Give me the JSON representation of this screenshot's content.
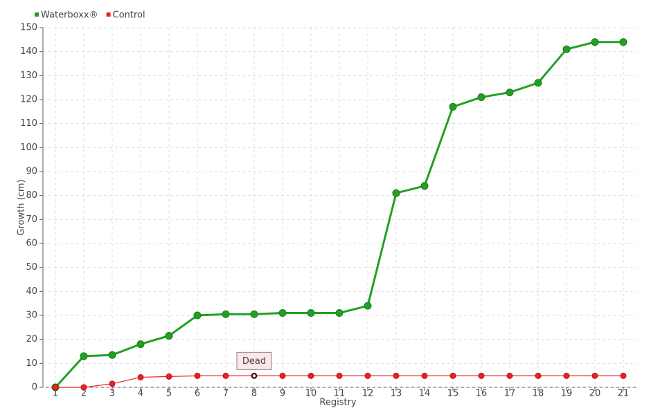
{
  "chart_data": {
    "type": "line",
    "xlabel": "Registry",
    "ylabel": "Growth (cm)",
    "categories": [
      "1",
      "2",
      "3",
      "4",
      "5",
      "6",
      "7",
      "8",
      "9",
      "10",
      "11",
      "12",
      "13",
      "14",
      "15",
      "16",
      "17",
      "18",
      "19",
      "20",
      "21"
    ],
    "series": [
      {
        "name": "Waterboxx®",
        "color": "#22a022",
        "values": [
          0,
          13,
          13.5,
          18,
          21.5,
          30,
          30.5,
          30.5,
          31,
          31,
          31,
          34,
          81,
          84,
          117,
          121,
          123,
          127,
          141,
          144,
          144
        ]
      },
      {
        "name": "Control",
        "color": "#e8202a",
        "values": [
          0,
          0,
          1.5,
          4.2,
          4.5,
          4.8,
          4.8,
          4.8,
          4.8,
          4.8,
          4.8,
          4.8,
          4.8,
          4.8,
          4.8,
          4.8,
          4.8,
          4.8,
          4.8,
          4.8,
          4.8
        ]
      }
    ],
    "annotations": [
      {
        "text": "Dead",
        "series": "Control",
        "category": "8"
      }
    ],
    "ylim": [
      0,
      150
    ],
    "yticks": [
      0,
      10,
      20,
      30,
      40,
      50,
      60,
      70,
      80,
      90,
      100,
      110,
      120,
      130,
      140,
      150
    ],
    "grid": true,
    "legend": "top-left"
  }
}
